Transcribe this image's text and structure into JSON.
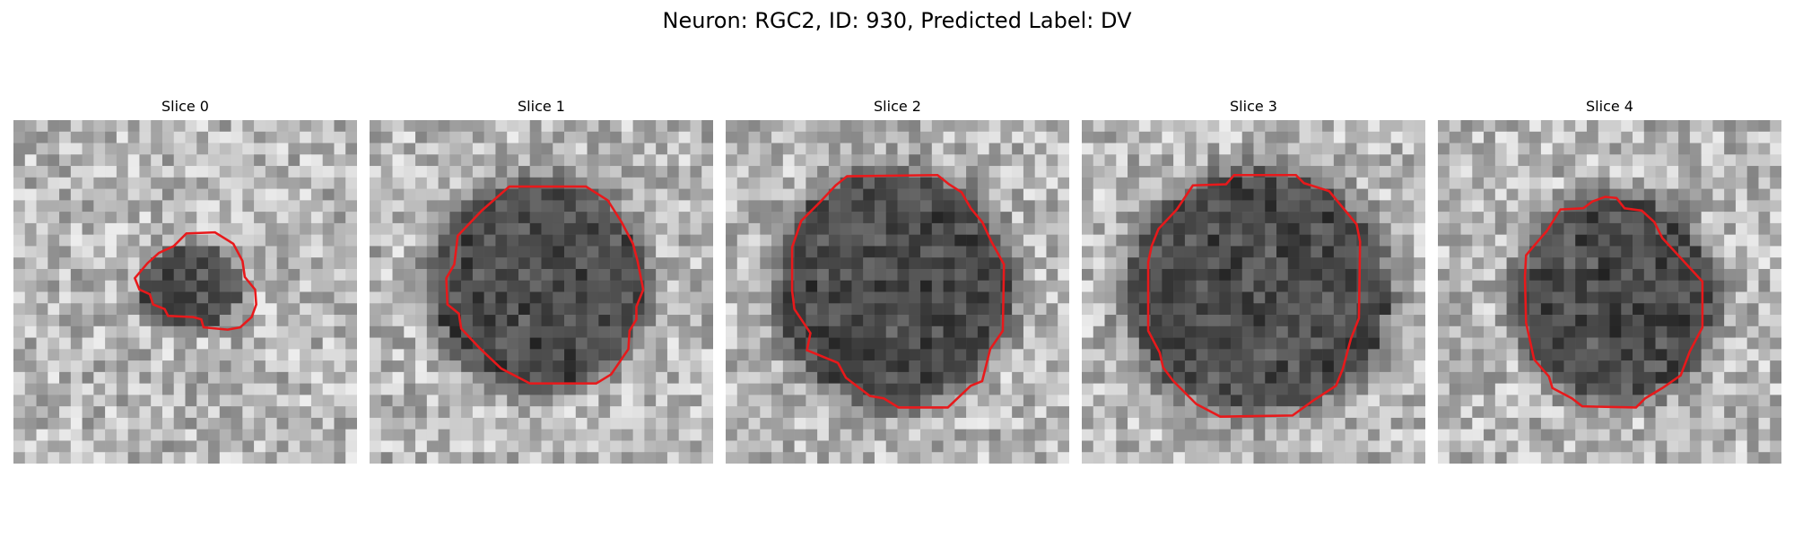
{
  "figure": {
    "title": "Neuron: RGC2, ID: 930, Predicted Label: DV",
    "outline_color": "#e8191b",
    "pixel_colormap": "grayscale",
    "panels": [
      {
        "title": "Slice 0",
        "region": "small irregular dark blob, left of center"
      },
      {
        "title": "Slice 1",
        "region": "large dark cell body"
      },
      {
        "title": "Slice 2",
        "region": "large dark cell body"
      },
      {
        "title": "Slice 3",
        "region": "large dark cell body"
      },
      {
        "title": "Slice 4",
        "region": "medium dark cell body"
      }
    ]
  }
}
